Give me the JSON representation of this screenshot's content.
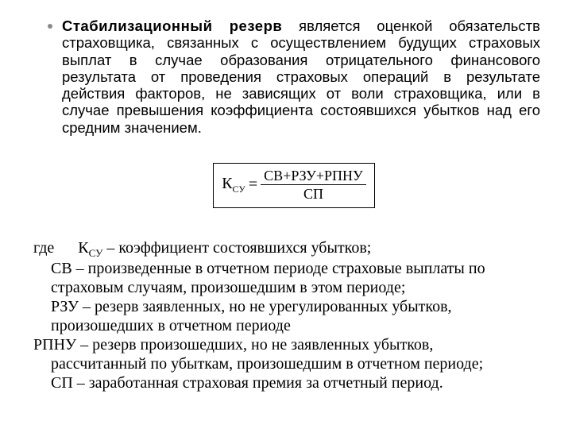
{
  "colors": {
    "background": "#ffffff",
    "text": "#000000",
    "bullet": "#8a8a8a",
    "formula_border": "#000000"
  },
  "typography": {
    "body_font": "Arial",
    "body_size_pt": 14,
    "defs_font": "Times New Roman",
    "defs_size_pt": 15,
    "formula_font": "Times New Roman",
    "formula_size_pt": 15
  },
  "paragraph": {
    "lead_bold": "Стабилизационный резерв",
    "rest": " является оценкой обязательств страховщика, связанных с осуществлением будущих страховых выплат в случае образования отрицательного финансового результата от проведения страховых операций в результате действия факторов, не зависящих от воли страховщика, или в случае превышения коэффициента состоявшихся убытков над его средним значением."
  },
  "formula": {
    "lhs_main": "К",
    "lhs_sub": "СУ",
    "eq": "=",
    "numerator": "СВ+РЗУ+РПНУ",
    "denominator": "СП"
  },
  "defs": {
    "where_label": "где",
    "ksu_main": "К",
    "ksu_sub": "СУ",
    "ksu_rest": " – коэффициент состоявшихся убытков;",
    "sv_line1": "СВ – произведенные в отчетном периоде страховые выплаты по",
    "sv_line2": "страховым случаям, произошедшим в этом периоде;",
    "rzu_line1": "РЗУ – резерв заявленных, но не урегулированных убытков,",
    "rzu_line2": "произошедших в отчетном периоде",
    "rpnu_line1": "РПНУ – резерв произошедших, но не заявленных убытков,",
    "rpnu_line2": "рассчитанный по убыткам, произошедшим в отчетном периоде;",
    "sp_line": "СП – заработанная страховая премия за отчетный период."
  }
}
